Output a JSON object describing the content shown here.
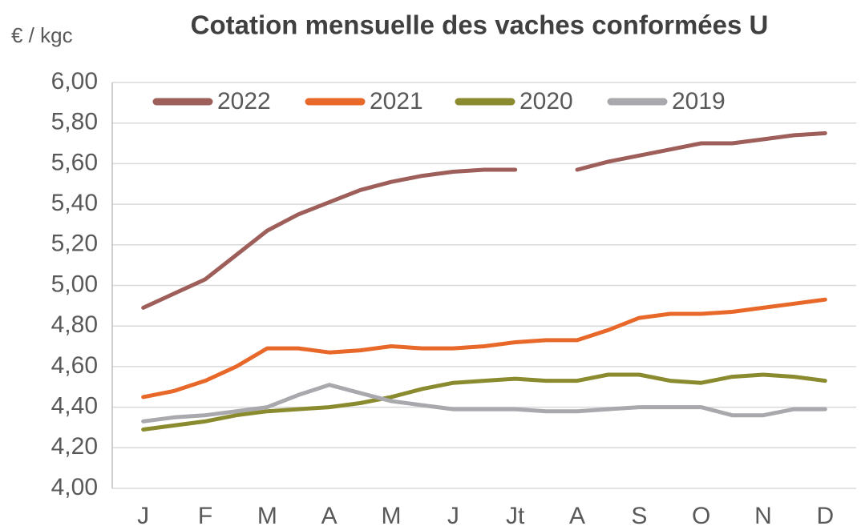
{
  "chart_data": {
    "type": "line",
    "title": "Cotation mensuelle des vaches conformées U",
    "y_label": "€ / kgc",
    "categories": [
      "J",
      null,
      "F",
      null,
      "M",
      null,
      "A",
      null,
      "M",
      null,
      "J",
      null,
      "Jt",
      null,
      "A",
      null,
      "S",
      null,
      "O",
      null,
      "N",
      null,
      "D"
    ],
    "series": [
      {
        "name": "2022",
        "color": "#9e5e5a",
        "values": [
          4.89,
          4.96,
          5.03,
          5.15,
          5.27,
          5.35,
          5.41,
          5.47,
          5.51,
          5.54,
          5.56,
          5.57,
          5.57,
          null,
          5.57,
          5.61,
          5.64,
          5.67,
          5.7,
          5.7,
          5.72,
          5.74,
          5.75
        ]
      },
      {
        "name": "2021",
        "color": "#e8682a",
        "values": [
          4.45,
          4.48,
          4.53,
          4.6,
          4.69,
          4.69,
          4.67,
          4.68,
          4.7,
          4.69,
          4.69,
          4.7,
          4.72,
          4.73,
          4.73,
          4.78,
          4.84,
          4.86,
          4.86,
          4.87,
          4.89,
          4.91,
          4.93
        ]
      },
      {
        "name": "2020",
        "color": "#8a8a2e",
        "values": [
          4.29,
          4.31,
          4.33,
          4.36,
          4.38,
          4.39,
          4.4,
          4.42,
          4.45,
          4.49,
          4.52,
          4.53,
          4.54,
          4.53,
          4.53,
          4.56,
          4.56,
          4.53,
          4.52,
          4.55,
          4.56,
          4.55,
          4.53
        ]
      },
      {
        "name": "2019",
        "color": "#a8a8ad",
        "values": [
          4.33,
          4.35,
          4.36,
          4.38,
          4.4,
          4.46,
          4.51,
          4.47,
          4.43,
          4.41,
          4.39,
          4.39,
          4.39,
          4.38,
          4.38,
          4.39,
          4.4,
          4.4,
          4.4,
          4.36,
          4.36,
          4.39,
          4.39
        ]
      }
    ],
    "ylim": [
      4.0,
      6.0
    ],
    "yticks": [
      {
        "value": 4.0,
        "label": "4,00"
      },
      {
        "value": 4.2,
        "label": "4,20"
      },
      {
        "value": 4.4,
        "label": "4,40"
      },
      {
        "value": 4.6,
        "label": "4,60"
      },
      {
        "value": 4.8,
        "label": "4,80"
      },
      {
        "value": 5.0,
        "label": "5,00"
      },
      {
        "value": 5.2,
        "label": "5,20"
      },
      {
        "value": 5.4,
        "label": "5,40"
      },
      {
        "value": 5.6,
        "label": "5,60"
      },
      {
        "value": 5.8,
        "label": "5,80"
      },
      {
        "value": 6.0,
        "label": "6,00"
      }
    ],
    "grid": true,
    "legend": "top"
  }
}
